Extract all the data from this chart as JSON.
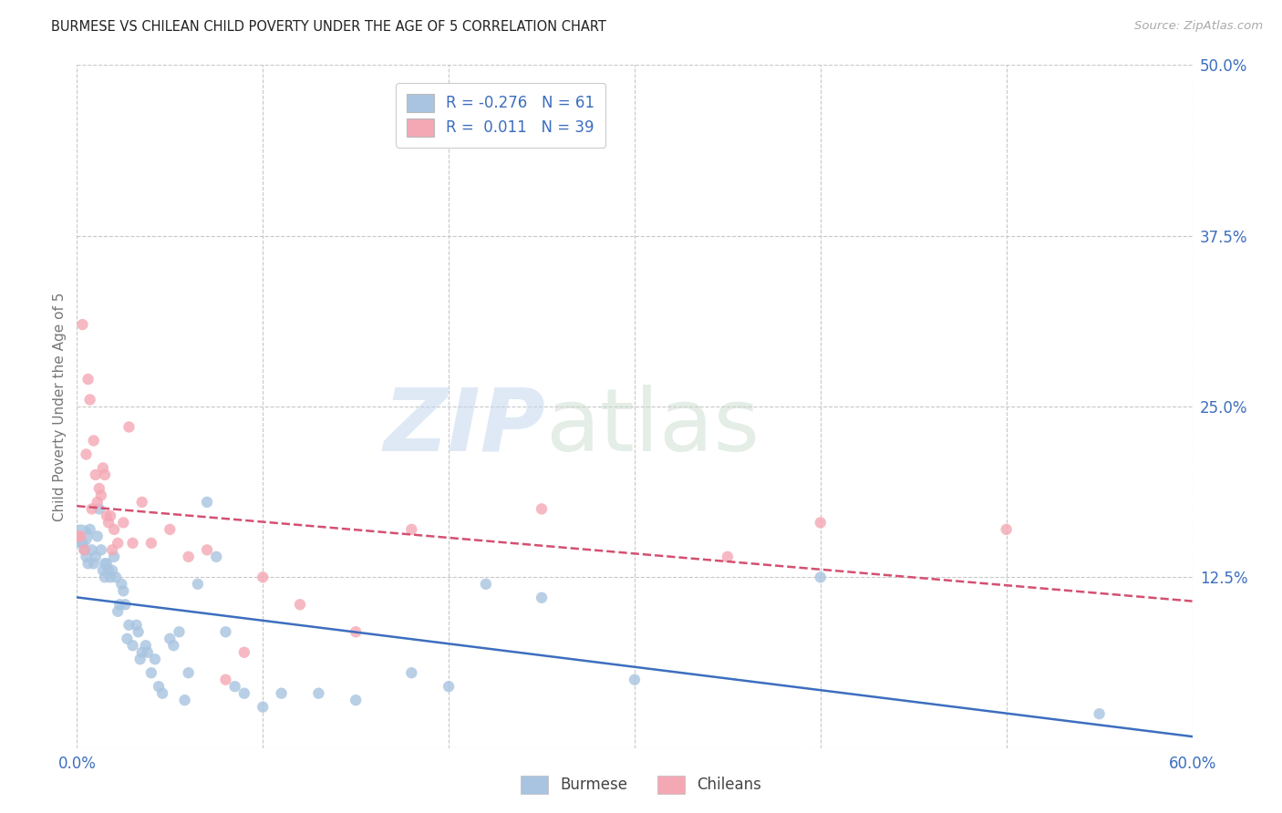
{
  "title": "BURMESE VS CHILEAN CHILD POVERTY UNDER THE AGE OF 5 CORRELATION CHART",
  "source": "Source: ZipAtlas.com",
  "ylabel": "Child Poverty Under the Age of 5",
  "xlim": [
    0.0,
    0.6
  ],
  "ylim": [
    0.0,
    0.5
  ],
  "ytick_positions": [
    0.0,
    0.125,
    0.25,
    0.375,
    0.5
  ],
  "yticklabels_right": [
    "",
    "12.5%",
    "25.0%",
    "37.5%",
    "50.0%"
  ],
  "grid_color": "#c8c8c8",
  "background_color": "#ffffff",
  "burmese_color": "#a8c4e0",
  "chilean_color": "#f4a8b4",
  "burmese_line_color": "#3c6ebf",
  "chilean_line_color": "#d45070",
  "legend_burmese_label": "Burmese",
  "legend_chilean_label": "Chileans",
  "burmese_R": "-0.276",
  "burmese_N": "61",
  "chilean_R": "0.011",
  "chilean_N": "39",
  "burmese_x": [
    0.002,
    0.003,
    0.004,
    0.005,
    0.006,
    0.007,
    0.008,
    0.009,
    0.01,
    0.011,
    0.012,
    0.013,
    0.014,
    0.015,
    0.015,
    0.016,
    0.017,
    0.018,
    0.019,
    0.02,
    0.021,
    0.022,
    0.023,
    0.024,
    0.025,
    0.026,
    0.027,
    0.028,
    0.03,
    0.032,
    0.033,
    0.034,
    0.035,
    0.037,
    0.038,
    0.04,
    0.042,
    0.044,
    0.046,
    0.05,
    0.052,
    0.055,
    0.058,
    0.06,
    0.065,
    0.07,
    0.075,
    0.08,
    0.085,
    0.09,
    0.1,
    0.11,
    0.13,
    0.15,
    0.18,
    0.2,
    0.22,
    0.25,
    0.3,
    0.4,
    0.55
  ],
  "burmese_y": [
    0.155,
    0.15,
    0.145,
    0.14,
    0.135,
    0.16,
    0.145,
    0.135,
    0.14,
    0.155,
    0.175,
    0.145,
    0.13,
    0.125,
    0.135,
    0.135,
    0.13,
    0.125,
    0.13,
    0.14,
    0.125,
    0.1,
    0.105,
    0.12,
    0.115,
    0.105,
    0.08,
    0.09,
    0.075,
    0.09,
    0.085,
    0.065,
    0.07,
    0.075,
    0.07,
    0.055,
    0.065,
    0.045,
    0.04,
    0.08,
    0.075,
    0.085,
    0.035,
    0.055,
    0.12,
    0.18,
    0.14,
    0.085,
    0.045,
    0.04,
    0.03,
    0.04,
    0.04,
    0.035,
    0.055,
    0.045,
    0.12,
    0.11,
    0.05,
    0.125,
    0.025
  ],
  "burmese_sizes": [
    80,
    80,
    80,
    80,
    80,
    80,
    80,
    80,
    80,
    80,
    80,
    80,
    80,
    80,
    80,
    80,
    80,
    80,
    80,
    80,
    80,
    80,
    80,
    80,
    80,
    80,
    80,
    80,
    80,
    80,
    80,
    80,
    80,
    80,
    80,
    80,
    80,
    80,
    80,
    80,
    80,
    80,
    80,
    80,
    80,
    80,
    80,
    80,
    80,
    80,
    80,
    80,
    80,
    80,
    80,
    80,
    80,
    80,
    80,
    80,
    80
  ],
  "burmese_big_idx": 0,
  "burmese_big_size": 350,
  "chilean_x": [
    0.001,
    0.002,
    0.003,
    0.004,
    0.005,
    0.006,
    0.007,
    0.008,
    0.009,
    0.01,
    0.011,
    0.012,
    0.013,
    0.014,
    0.015,
    0.016,
    0.017,
    0.018,
    0.019,
    0.02,
    0.022,
    0.025,
    0.028,
    0.03,
    0.035,
    0.04,
    0.05,
    0.06,
    0.07,
    0.08,
    0.09,
    0.1,
    0.12,
    0.15,
    0.18,
    0.25,
    0.35,
    0.4,
    0.5
  ],
  "chilean_y": [
    0.155,
    0.155,
    0.31,
    0.145,
    0.215,
    0.27,
    0.255,
    0.175,
    0.225,
    0.2,
    0.18,
    0.19,
    0.185,
    0.205,
    0.2,
    0.17,
    0.165,
    0.17,
    0.145,
    0.16,
    0.15,
    0.165,
    0.235,
    0.15,
    0.18,
    0.15,
    0.16,
    0.14,
    0.145,
    0.05,
    0.07,
    0.125,
    0.105,
    0.085,
    0.16,
    0.175,
    0.14,
    0.165,
    0.16
  ],
  "chilean_sizes": [
    80,
    80,
    80,
    80,
    80,
    80,
    80,
    80,
    80,
    80,
    80,
    80,
    80,
    80,
    80,
    80,
    80,
    80,
    80,
    80,
    80,
    80,
    80,
    80,
    80,
    80,
    80,
    80,
    80,
    80,
    80,
    80,
    80,
    80,
    80,
    80,
    80,
    80,
    80
  ]
}
